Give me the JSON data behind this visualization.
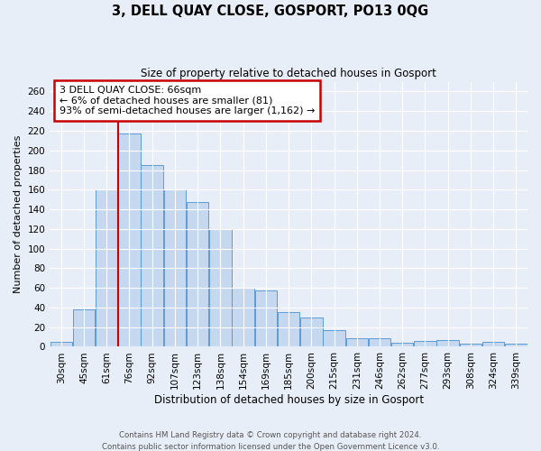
{
  "title": "3, DELL QUAY CLOSE, GOSPORT, PO13 0QG",
  "subtitle": "Size of property relative to detached houses in Gosport",
  "xlabel": "Distribution of detached houses by size in Gosport",
  "ylabel": "Number of detached properties",
  "bar_labels": [
    "30sqm",
    "45sqm",
    "61sqm",
    "76sqm",
    "92sqm",
    "107sqm",
    "123sqm",
    "138sqm",
    "154sqm",
    "169sqm",
    "185sqm",
    "200sqm",
    "215sqm",
    "231sqm",
    "246sqm",
    "262sqm",
    "277sqm",
    "293sqm",
    "308sqm",
    "324sqm",
    "339sqm"
  ],
  "bar_values": [
    5,
    38,
    160,
    217,
    185,
    160,
    147,
    120,
    60,
    57,
    35,
    30,
    17,
    9,
    9,
    4,
    6,
    7,
    3,
    5,
    3
  ],
  "bar_color": "#c5d8f0",
  "bar_edge_color": "#5b9bd5",
  "vline_color": "#cc0000",
  "annotation_title": "3 DELL QUAY CLOSE: 66sqm",
  "annotation_line1": "← 6% of detached houses are smaller (81)",
  "annotation_line2": "93% of semi-detached houses are larger (1,162) →",
  "annotation_box_color": "#cc0000",
  "ylim": [
    0,
    270
  ],
  "yticks": [
    0,
    20,
    40,
    60,
    80,
    100,
    120,
    140,
    160,
    180,
    200,
    220,
    240,
    260
  ],
  "footer1": "Contains HM Land Registry data © Crown copyright and database right 2024.",
  "footer2": "Contains public sector information licensed under the Open Government Licence v3.0.",
  "bg_color": "#e8eef8",
  "plot_bg_color": "#e8eef8"
}
